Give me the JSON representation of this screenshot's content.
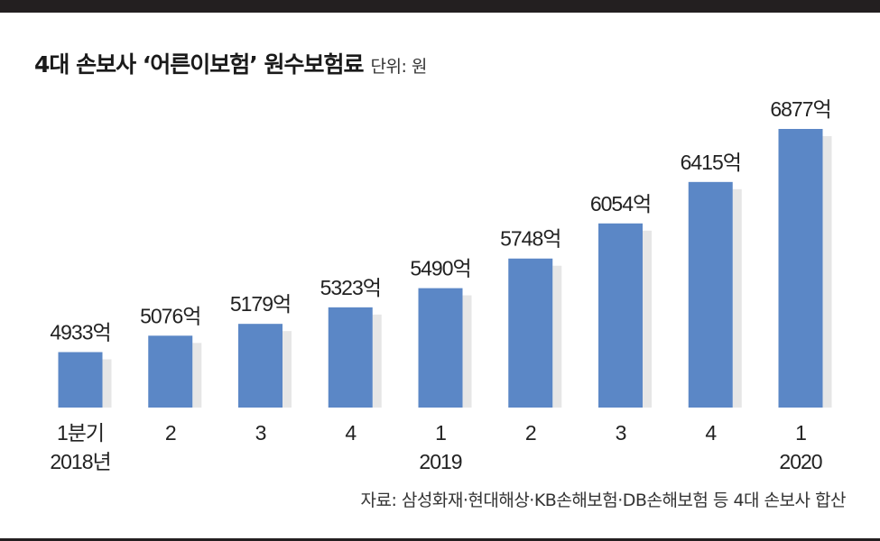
{
  "header": {
    "title": "4대 손보사 ‘어른이보험’ 원수보험료",
    "unit": "단위: 원"
  },
  "source": "자료: 삼성화재·현대해상·KB손해보험·DB손해보험 등 4대 손보사 합산",
  "colors": {
    "bar": "#5b87c6",
    "rule": "#231f20",
    "text": "#222222"
  },
  "chart_data": {
    "type": "bar",
    "categories": [
      "1분기",
      "2",
      "3",
      "4",
      "1",
      "2",
      "3",
      "4",
      "1"
    ],
    "year_labels": [
      "2018년",
      "",
      "",
      "",
      "2019",
      "",
      "",
      "",
      "2020"
    ],
    "values": [
      4933,
      5076,
      5179,
      5323,
      5490,
      5748,
      6054,
      6415,
      6877
    ],
    "value_labels": [
      "4933억",
      "5076억",
      "5179억",
      "5323억",
      "5490억",
      "5748억",
      "6054억",
      "6415억",
      "6877억"
    ],
    "title": "4대 손보사 ‘어른이보험’ 원수보험료",
    "xlabel": "",
    "ylabel": "",
    "grid": false,
    "legend": "none"
  }
}
